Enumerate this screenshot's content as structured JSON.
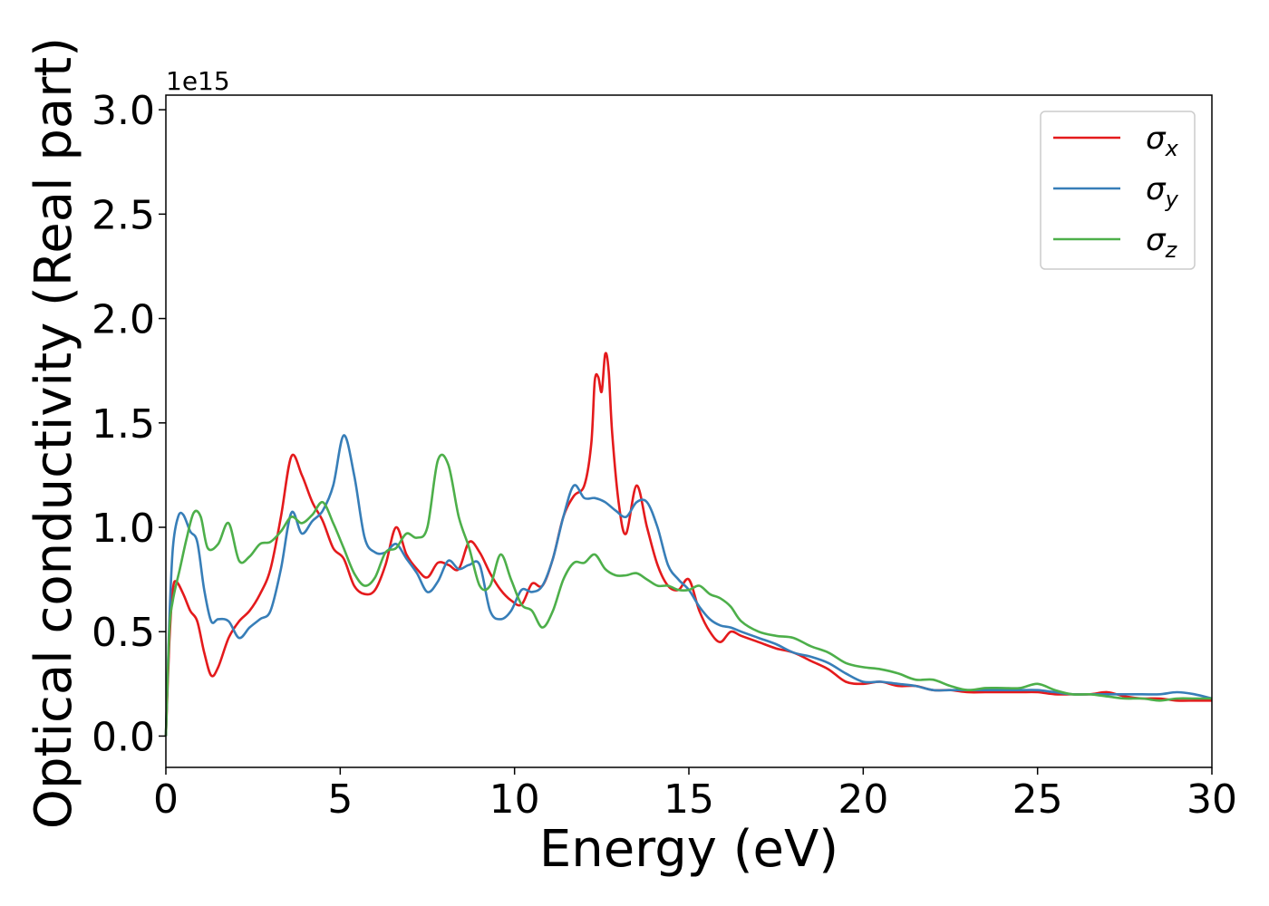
{
  "chart_data": {
    "type": "line",
    "xlabel": "Energy (eV)",
    "ylabel": "Optical conductivity (Real part)",
    "y_offset_label": "1e15",
    "xlim": [
      0,
      30
    ],
    "ylim": [
      -0.15,
      3.07
    ],
    "x_ticks": [
      0,
      5,
      10,
      15,
      20,
      25,
      30
    ],
    "x_tick_labels": [
      "0",
      "5",
      "10",
      "15",
      "20",
      "25",
      "30"
    ],
    "y_ticks": [
      0.0,
      0.5,
      1.0,
      1.5,
      2.0,
      2.5,
      3.0
    ],
    "y_tick_labels": [
      "0.0",
      "0.5",
      "1.0",
      "1.5",
      "2.0",
      "2.5",
      "3.0"
    ],
    "grid": false,
    "legend_position": "top-right",
    "series": [
      {
        "name": "σx",
        "legend_base": "σ",
        "legend_sub": "x",
        "color": "#e41a1c",
        "x": [
          0,
          0.1,
          0.2,
          0.3,
          0.5,
          0.7,
          0.9,
          1.1,
          1.3,
          1.5,
          1.8,
          2.1,
          2.4,
          2.7,
          3.0,
          3.3,
          3.6,
          3.9,
          4.2,
          4.5,
          4.8,
          5.1,
          5.4,
          5.7,
          6.0,
          6.3,
          6.6,
          6.9,
          7.2,
          7.5,
          7.8,
          8.1,
          8.4,
          8.7,
          9.0,
          9.3,
          9.6,
          9.9,
          10.2,
          10.5,
          10.8,
          11.1,
          11.4,
          11.7,
          12.0,
          12.2,
          12.3,
          12.4,
          12.5,
          12.6,
          12.7,
          12.8,
          13.0,
          13.2,
          13.5,
          13.8,
          14.1,
          14.4,
          14.7,
          15.0,
          15.3,
          15.6,
          15.9,
          16.2,
          16.5,
          17.0,
          17.5,
          18.0,
          18.5,
          19.0,
          19.5,
          20.0,
          20.5,
          21.0,
          21.5,
          22.0,
          22.5,
          23.0,
          23.5,
          24.0,
          24.5,
          25.0,
          25.5,
          26.0,
          26.5,
          27.0,
          27.5,
          28.0,
          28.5,
          29.0,
          29.5,
          30.0
        ],
        "y": [
          0.0,
          0.45,
          0.7,
          0.74,
          0.68,
          0.6,
          0.55,
          0.4,
          0.29,
          0.33,
          0.47,
          0.55,
          0.6,
          0.68,
          0.8,
          1.05,
          1.34,
          1.25,
          1.12,
          1.03,
          0.9,
          0.85,
          0.72,
          0.68,
          0.7,
          0.82,
          1.0,
          0.87,
          0.8,
          0.76,
          0.83,
          0.82,
          0.8,
          0.93,
          0.88,
          0.78,
          0.7,
          0.65,
          0.63,
          0.73,
          0.72,
          0.85,
          1.05,
          1.15,
          1.2,
          1.4,
          1.7,
          1.72,
          1.65,
          1.83,
          1.75,
          1.45,
          1.1,
          0.97,
          1.2,
          1.0,
          0.82,
          0.72,
          0.7,
          0.75,
          0.6,
          0.5,
          0.45,
          0.5,
          0.48,
          0.45,
          0.42,
          0.4,
          0.36,
          0.32,
          0.26,
          0.25,
          0.26,
          0.24,
          0.24,
          0.22,
          0.22,
          0.21,
          0.21,
          0.21,
          0.21,
          0.21,
          0.2,
          0.2,
          0.2,
          0.21,
          0.19,
          0.18,
          0.18,
          0.17,
          0.17,
          0.17
        ]
      },
      {
        "name": "σy",
        "legend_base": "σ",
        "legend_sub": "y",
        "color": "#377eb8",
        "x": [
          0,
          0.1,
          0.2,
          0.35,
          0.5,
          0.7,
          0.9,
          1.1,
          1.3,
          1.5,
          1.8,
          2.1,
          2.4,
          2.7,
          3.0,
          3.3,
          3.6,
          3.9,
          4.2,
          4.5,
          4.8,
          5.1,
          5.4,
          5.7,
          6.0,
          6.3,
          6.6,
          6.9,
          7.2,
          7.5,
          7.8,
          8.1,
          8.4,
          8.7,
          9.0,
          9.3,
          9.6,
          9.9,
          10.2,
          10.5,
          10.8,
          11.1,
          11.4,
          11.7,
          12.0,
          12.3,
          12.6,
          12.9,
          13.2,
          13.5,
          13.8,
          14.1,
          14.4,
          14.7,
          15.0,
          15.3,
          15.6,
          15.9,
          16.2,
          16.5,
          17.0,
          17.5,
          18.0,
          18.5,
          19.0,
          19.5,
          20.0,
          20.5,
          21.0,
          21.5,
          22.0,
          22.5,
          23.0,
          23.5,
          24.0,
          24.5,
          25.0,
          25.5,
          26.0,
          26.5,
          27.0,
          27.5,
          28.0,
          28.5,
          29.0,
          29.5,
          30.0
        ],
        "y": [
          0.0,
          0.55,
          0.9,
          1.05,
          1.06,
          0.98,
          0.93,
          0.7,
          0.55,
          0.56,
          0.55,
          0.47,
          0.52,
          0.56,
          0.6,
          0.8,
          1.07,
          0.97,
          1.03,
          1.08,
          1.2,
          1.44,
          1.25,
          0.95,
          0.88,
          0.88,
          0.92,
          0.85,
          0.78,
          0.69,
          0.74,
          0.84,
          0.8,
          0.82,
          0.82,
          0.6,
          0.56,
          0.6,
          0.7,
          0.69,
          0.72,
          0.85,
          1.05,
          1.2,
          1.14,
          1.14,
          1.12,
          1.08,
          1.05,
          1.12,
          1.12,
          1.0,
          0.82,
          0.75,
          0.7,
          0.62,
          0.56,
          0.53,
          0.52,
          0.5,
          0.47,
          0.44,
          0.4,
          0.38,
          0.35,
          0.3,
          0.26,
          0.26,
          0.25,
          0.24,
          0.22,
          0.22,
          0.22,
          0.22,
          0.22,
          0.22,
          0.22,
          0.21,
          0.2,
          0.2,
          0.2,
          0.2,
          0.2,
          0.2,
          0.21,
          0.2,
          0.18
        ]
      },
      {
        "name": "σz",
        "legend_base": "σ",
        "legend_sub": "z",
        "color": "#4daf4a",
        "x": [
          0,
          0.1,
          0.2,
          0.4,
          0.6,
          0.8,
          1.0,
          1.2,
          1.5,
          1.8,
          2.1,
          2.4,
          2.7,
          3.0,
          3.3,
          3.6,
          3.9,
          4.2,
          4.5,
          4.8,
          5.1,
          5.4,
          5.7,
          6.0,
          6.3,
          6.6,
          6.9,
          7.2,
          7.5,
          7.8,
          8.1,
          8.4,
          8.7,
          9.0,
          9.3,
          9.6,
          9.9,
          10.2,
          10.5,
          10.8,
          11.1,
          11.4,
          11.7,
          12.0,
          12.3,
          12.6,
          12.9,
          13.2,
          13.5,
          13.8,
          14.1,
          14.4,
          14.7,
          15.0,
          15.3,
          15.6,
          15.9,
          16.2,
          16.5,
          17.0,
          17.5,
          18.0,
          18.5,
          19.0,
          19.5,
          20.0,
          20.5,
          21.0,
          21.5,
          22.0,
          22.5,
          23.0,
          23.5,
          24.0,
          24.5,
          25.0,
          25.5,
          26.0,
          26.5,
          27.0,
          27.5,
          28.0,
          28.5,
          29.0,
          29.5,
          30.0
        ],
        "y": [
          0.0,
          0.5,
          0.65,
          0.8,
          0.95,
          1.07,
          1.05,
          0.9,
          0.92,
          1.02,
          0.84,
          0.86,
          0.92,
          0.93,
          0.98,
          1.05,
          1.02,
          1.06,
          1.12,
          1.02,
          0.9,
          0.78,
          0.72,
          0.76,
          0.88,
          0.9,
          0.97,
          0.95,
          1.0,
          1.32,
          1.3,
          1.05,
          0.9,
          0.72,
          0.72,
          0.87,
          0.75,
          0.63,
          0.6,
          0.52,
          0.6,
          0.75,
          0.83,
          0.83,
          0.87,
          0.8,
          0.77,
          0.77,
          0.78,
          0.75,
          0.72,
          0.72,
          0.7,
          0.7,
          0.72,
          0.68,
          0.66,
          0.62,
          0.55,
          0.5,
          0.48,
          0.47,
          0.43,
          0.4,
          0.35,
          0.33,
          0.32,
          0.3,
          0.27,
          0.27,
          0.24,
          0.22,
          0.23,
          0.23,
          0.23,
          0.25,
          0.22,
          0.2,
          0.2,
          0.19,
          0.18,
          0.18,
          0.17,
          0.18,
          0.18,
          0.18
        ]
      }
    ]
  }
}
